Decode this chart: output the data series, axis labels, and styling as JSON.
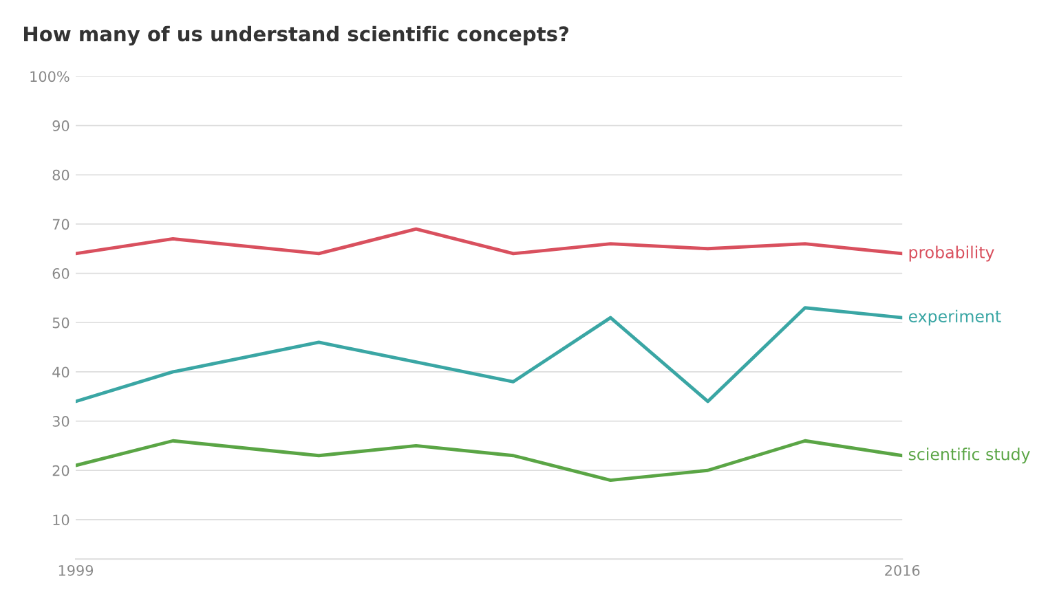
{
  "chart_data": {
    "type": "line",
    "title": "How many of us understand scientific concepts?",
    "x": [
      1999,
      2001,
      2004,
      2006,
      2008,
      2010,
      2012,
      2014,
      2016
    ],
    "series": [
      {
        "name": "probability",
        "color": "#d9505e",
        "values": [
          64,
          67,
          64,
          69,
          64,
          66,
          65,
          66,
          64
        ]
      },
      {
        "name": "experiment",
        "color": "#3aa6a4",
        "values": [
          34,
          40,
          46,
          42,
          38,
          51,
          34,
          53,
          51
        ]
      },
      {
        "name": "scientific study",
        "color": "#5aa545",
        "values": [
          21,
          26,
          23,
          25,
          23,
          18,
          20,
          26,
          23
        ]
      }
    ],
    "xlim": [
      1999,
      2016
    ],
    "xticks": [
      1999,
      2016
    ],
    "ylim": [
      2,
      100
    ],
    "yticks": [
      10,
      20,
      30,
      40,
      50,
      60,
      70,
      80,
      90,
      {
        "value": 100,
        "label": "100%"
      }
    ],
    "grid": "y",
    "marker": "none",
    "line_style": "solid"
  }
}
